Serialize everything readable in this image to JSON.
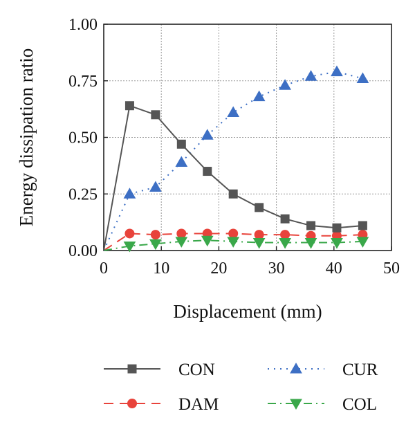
{
  "chart_data": {
    "type": "line",
    "title": "",
    "xlabel": "Displacement (mm)",
    "ylabel": "Energy dissipation ratio",
    "xlim": [
      0,
      50
    ],
    "ylim": [
      0,
      1
    ],
    "xticks": [
      0,
      10,
      20,
      30,
      40,
      50
    ],
    "xtick_labels": [
      "0",
      "10",
      "20",
      "30",
      "40",
      "50"
    ],
    "yticks": [
      0,
      0.25,
      0.5,
      0.75,
      1.0
    ],
    "ytick_labels": [
      "0.00",
      "0.25",
      "0.50",
      "0.75",
      "1.00"
    ],
    "grid": true,
    "legend_position": "bottom",
    "series": [
      {
        "name": "CON",
        "color": "#555555",
        "marker": "square",
        "line_style": "solid",
        "x": [
          0,
          4.5,
          9,
          13.5,
          18,
          22.5,
          27,
          31.5,
          36,
          40.5,
          45
        ],
        "y": [
          0,
          0.64,
          0.6,
          0.47,
          0.35,
          0.25,
          0.19,
          0.14,
          0.11,
          0.1,
          0.11
        ]
      },
      {
        "name": "CUR",
        "color": "#3d6fc4",
        "marker": "triangle-up",
        "line_style": "dotted",
        "x": [
          0,
          4.5,
          9,
          13.5,
          18,
          22.5,
          27,
          31.5,
          36,
          40.5,
          45
        ],
        "y": [
          0,
          0.25,
          0.28,
          0.39,
          0.51,
          0.61,
          0.68,
          0.73,
          0.77,
          0.79,
          0.76
        ]
      },
      {
        "name": "DAM",
        "color": "#e8433b",
        "marker": "circle",
        "line_style": "dashed",
        "x": [
          0,
          4.5,
          9,
          13.5,
          18,
          22.5,
          27,
          31.5,
          36,
          40.5,
          45
        ],
        "y": [
          0,
          0.075,
          0.07,
          0.075,
          0.075,
          0.075,
          0.07,
          0.07,
          0.065,
          0.065,
          0.07
        ]
      },
      {
        "name": "COL",
        "color": "#3aa84a",
        "marker": "triangle-down",
        "line_style": "dashdot",
        "x": [
          0,
          4.5,
          9,
          13.5,
          18,
          22.5,
          27,
          31.5,
          36,
          40.5,
          45
        ],
        "y": [
          0,
          0.02,
          0.03,
          0.04,
          0.045,
          0.04,
          0.035,
          0.035,
          0.035,
          0.035,
          0.04
        ]
      }
    ]
  }
}
